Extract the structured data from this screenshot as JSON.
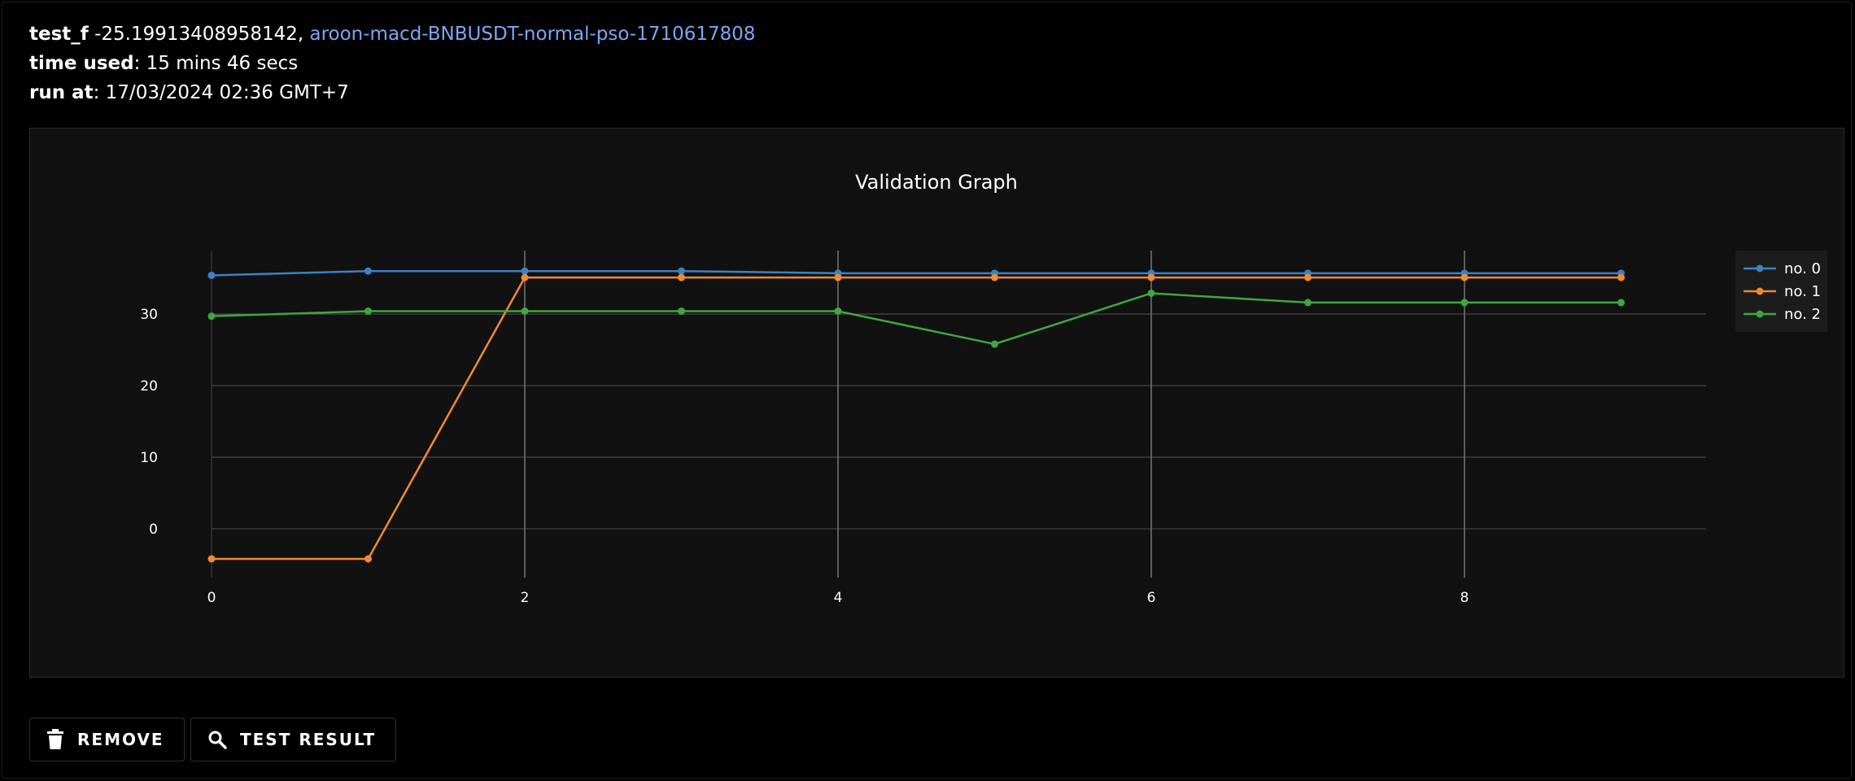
{
  "run": {
    "test_f_label": "test_f",
    "test_f_value": " -25.19913408958142,",
    "run_link": "aroon-macd-BNBUSDT-normal-pso-1710617808",
    "time_used_label": "time used",
    "time_used_value": ": 15 mins 46 secs",
    "run_at_label": "run at",
    "run_at_value": ": 17/03/2024 02:36 GMT+7"
  },
  "chart_data": {
    "type": "line",
    "title": "Validation Graph",
    "xlabel": "",
    "ylabel": "",
    "x": [
      0,
      1,
      2,
      3,
      4,
      5,
      6,
      7,
      8,
      9
    ],
    "xlim": [
      0,
      9.5
    ],
    "ylim": [
      -7,
      42
    ],
    "x_ticks": [
      0,
      2,
      4,
      6,
      8
    ],
    "y_ticks": [
      0,
      10,
      20,
      30
    ],
    "grid": true,
    "legend_position": "top-right",
    "series": [
      {
        "name": "no. 0",
        "color": "#3b82c4",
        "values": [
          35.4,
          36.0,
          36.0,
          36.0,
          35.7,
          35.7,
          35.7,
          35.7,
          35.7,
          35.7
        ]
      },
      {
        "name": "no. 1",
        "color": "#f28a30",
        "values": [
          -4.2,
          -4.2,
          35.1,
          35.1,
          35.1,
          35.1,
          35.1,
          35.1,
          35.1,
          35.1
        ]
      },
      {
        "name": "no. 2",
        "color": "#3fa73f",
        "values": [
          29.7,
          30.4,
          30.4,
          30.4,
          30.4,
          25.8,
          32.9,
          31.6,
          31.6,
          31.6
        ]
      }
    ]
  },
  "actions": {
    "remove_label": "REMOVE",
    "test_result_label": "TEST RESULT"
  }
}
